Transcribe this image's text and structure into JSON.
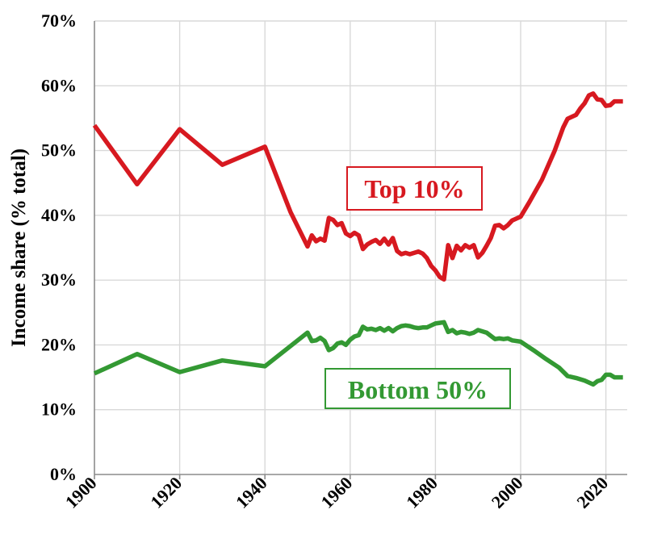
{
  "chart_data": {
    "type": "line",
    "ylabel": "Income share (% total)",
    "xlim": [
      1900,
      2025
    ],
    "ylim": [
      0,
      70
    ],
    "x_ticks": [
      "1900",
      "1920",
      "1940",
      "1960",
      "1980",
      "2000",
      "2020"
    ],
    "y_ticks": [
      "0%",
      "10%",
      "20%",
      "30%",
      "40%",
      "50%",
      "60%",
      "70%"
    ],
    "grid": true,
    "series": [
      {
        "name": "Top 10%",
        "color": "#d71920",
        "points": [
          [
            1900,
            53.9
          ],
          [
            1910,
            44.8
          ],
          [
            1920,
            53.3
          ],
          [
            1930,
            47.8
          ],
          [
            1940,
            50.6
          ],
          [
            1946,
            40.5
          ],
          [
            1950,
            35.2
          ],
          [
            1951,
            36.9
          ],
          [
            1952,
            36.0
          ],
          [
            1953,
            36.4
          ],
          [
            1954,
            36.1
          ],
          [
            1955,
            39.6
          ],
          [
            1956,
            39.3
          ],
          [
            1957,
            38.5
          ],
          [
            1958,
            38.8
          ],
          [
            1959,
            37.2
          ],
          [
            1960,
            36.8
          ],
          [
            1961,
            37.3
          ],
          [
            1962,
            36.9
          ],
          [
            1963,
            34.8
          ],
          [
            1964,
            35.5
          ],
          [
            1965,
            35.9
          ],
          [
            1966,
            36.2
          ],
          [
            1967,
            35.6
          ],
          [
            1968,
            36.4
          ],
          [
            1969,
            35.5
          ],
          [
            1970,
            36.5
          ],
          [
            1971,
            34.5
          ],
          [
            1972,
            34.0
          ],
          [
            1973,
            34.2
          ],
          [
            1974,
            34.0
          ],
          [
            1975,
            34.2
          ],
          [
            1976,
            34.4
          ],
          [
            1977,
            34.1
          ],
          [
            1978,
            33.4
          ],
          [
            1979,
            32.2
          ],
          [
            1980,
            31.5
          ],
          [
            1981,
            30.5
          ],
          [
            1982,
            30.1
          ],
          [
            1983,
            35.4
          ],
          [
            1984,
            33.4
          ],
          [
            1985,
            35.3
          ],
          [
            1986,
            34.6
          ],
          [
            1987,
            35.4
          ],
          [
            1988,
            35.0
          ],
          [
            1989,
            35.4
          ],
          [
            1990,
            33.5
          ],
          [
            1991,
            34.2
          ],
          [
            1992,
            35.3
          ],
          [
            1993,
            36.5
          ],
          [
            1994,
            38.4
          ],
          [
            1995,
            38.5
          ],
          [
            1996,
            38.0
          ],
          [
            1997,
            38.5
          ],
          [
            1998,
            39.2
          ],
          [
            1999,
            39.5
          ],
          [
            2000,
            39.8
          ],
          [
            2002,
            42.0
          ],
          [
            2005,
            45.5
          ],
          [
            2008,
            50.0
          ],
          [
            2010,
            53.6
          ],
          [
            2011,
            54.9
          ],
          [
            2012,
            55.2
          ],
          [
            2013,
            55.5
          ],
          [
            2014,
            56.5
          ],
          [
            2015,
            57.3
          ],
          [
            2016,
            58.5
          ],
          [
            2017,
            58.8
          ],
          [
            2018,
            57.9
          ],
          [
            2019,
            57.8
          ],
          [
            2020,
            56.9
          ],
          [
            2021,
            57.0
          ],
          [
            2022,
            57.6
          ],
          [
            2023,
            57.6
          ],
          [
            2024,
            57.6
          ]
        ]
      },
      {
        "name": "Bottom 50%",
        "color": "#339933",
        "points": [
          [
            1900,
            15.6
          ],
          [
            1910,
            18.6
          ],
          [
            1920,
            15.8
          ],
          [
            1930,
            17.6
          ],
          [
            1940,
            16.7
          ],
          [
            1950,
            21.9
          ],
          [
            1951,
            20.6
          ],
          [
            1952,
            20.7
          ],
          [
            1953,
            21.1
          ],
          [
            1954,
            20.6
          ],
          [
            1955,
            19.2
          ],
          [
            1956,
            19.5
          ],
          [
            1957,
            20.2
          ],
          [
            1958,
            20.4
          ],
          [
            1959,
            20.0
          ],
          [
            1960,
            20.8
          ],
          [
            1961,
            21.3
          ],
          [
            1962,
            21.5
          ],
          [
            1963,
            22.8
          ],
          [
            1964,
            22.4
          ],
          [
            1965,
            22.5
          ],
          [
            1966,
            22.3
          ],
          [
            1967,
            22.6
          ],
          [
            1968,
            22.2
          ],
          [
            1969,
            22.6
          ],
          [
            1970,
            22.1
          ],
          [
            1971,
            22.6
          ],
          [
            1972,
            22.9
          ],
          [
            1973,
            23.0
          ],
          [
            1974,
            22.9
          ],
          [
            1975,
            22.7
          ],
          [
            1976,
            22.6
          ],
          [
            1977,
            22.7
          ],
          [
            1978,
            22.7
          ],
          [
            1979,
            23.0
          ],
          [
            1980,
            23.3
          ],
          [
            1981,
            23.4
          ],
          [
            1982,
            23.5
          ],
          [
            1983,
            22.0
          ],
          [
            1984,
            22.3
          ],
          [
            1985,
            21.8
          ],
          [
            1986,
            22.0
          ],
          [
            1987,
            21.9
          ],
          [
            1988,
            21.7
          ],
          [
            1989,
            21.9
          ],
          [
            1990,
            22.3
          ],
          [
            1991,
            22.1
          ],
          [
            1992,
            21.9
          ],
          [
            1993,
            21.4
          ],
          [
            1994,
            20.9
          ],
          [
            1995,
            21.0
          ],
          [
            1996,
            20.9
          ],
          [
            1997,
            21.0
          ],
          [
            1998,
            20.7
          ],
          [
            2000,
            20.5
          ],
          [
            2003,
            19.2
          ],
          [
            2006,
            17.8
          ],
          [
            2009,
            16.5
          ],
          [
            2011,
            15.2
          ],
          [
            2013,
            14.9
          ],
          [
            2015,
            14.5
          ],
          [
            2017,
            13.9
          ],
          [
            2018,
            14.4
          ],
          [
            2019,
            14.6
          ],
          [
            2020,
            15.4
          ],
          [
            2021,
            15.4
          ],
          [
            2022,
            15.0
          ],
          [
            2023,
            15.0
          ],
          [
            2024,
            15.0
          ]
        ]
      }
    ],
    "annotations": [
      {
        "text": "Top 10%",
        "color": "#d71920"
      },
      {
        "text": "Bottom 50%",
        "color": "#339933"
      }
    ]
  }
}
